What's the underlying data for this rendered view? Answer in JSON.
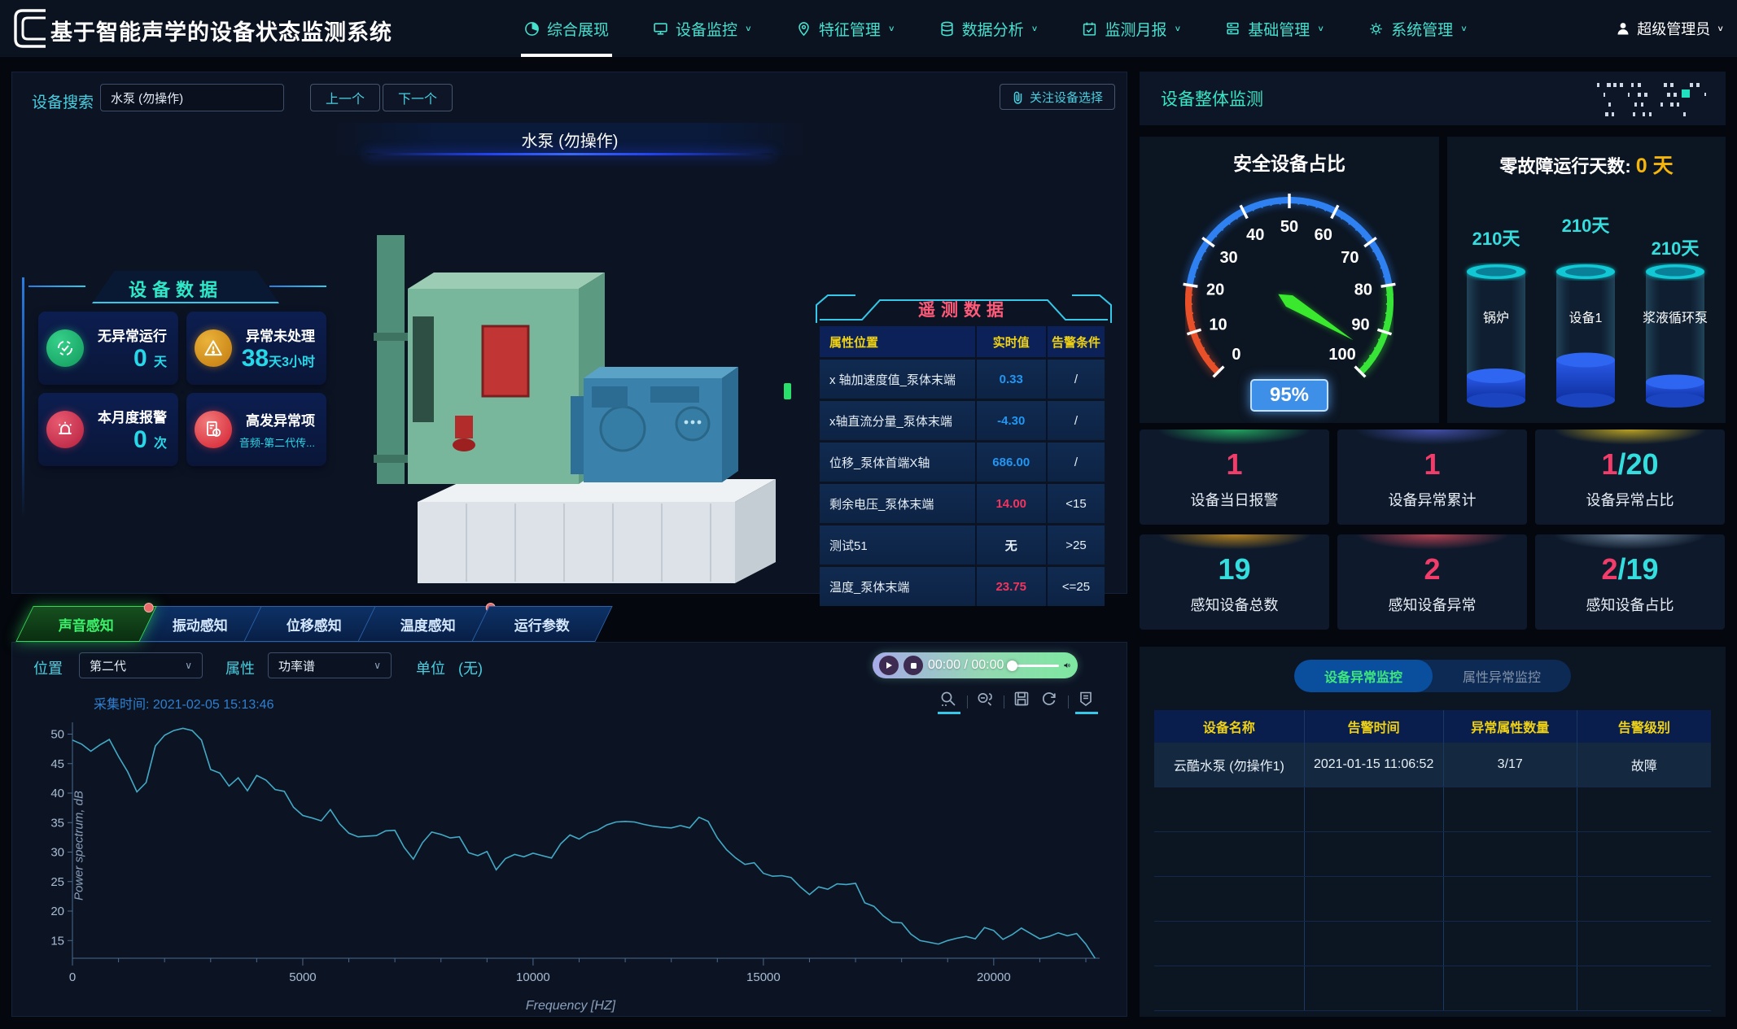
{
  "app": {
    "title": "基于智能声学的设备状态监测系统"
  },
  "nav": {
    "items": [
      {
        "label": "综合展现",
        "icon": "dashboard-icon",
        "active": true
      },
      {
        "label": "设备监控",
        "icon": "monitor-icon"
      },
      {
        "label": "特征管理",
        "icon": "feature-pin-icon"
      },
      {
        "label": "数据分析",
        "icon": "database-icon"
      },
      {
        "label": "监测月报",
        "icon": "report-calendar-icon"
      },
      {
        "label": "基础管理",
        "icon": "server-icon"
      },
      {
        "label": "系统管理",
        "icon": "gears-icon"
      }
    ],
    "user": "超级管理员"
  },
  "device_panel": {
    "search_label": "设备搜索",
    "search_value": "水泵 (勿操作)",
    "prev_button": "上一个",
    "next_button": "下一个",
    "focus_button": "关注设备选择",
    "device_title": "水泵 (勿操作)",
    "stats_title": "设备数据",
    "stats": [
      {
        "label": "无异常运行",
        "value": "0",
        "unit": "天"
      },
      {
        "label": "异常未处理",
        "value": "38",
        "unit": "天3小时"
      },
      {
        "label": "本月度报警",
        "value": "0",
        "unit": "次"
      },
      {
        "label": "高发异常项",
        "note": "音频-第二代传..."
      }
    ]
  },
  "telemetry": {
    "title": "遥测数据",
    "headers": [
      "属性位置",
      "实时值",
      "告警条件"
    ],
    "rows": [
      {
        "name": "x 轴加速度值_泵体末端",
        "value": "0.33",
        "cond": "/",
        "color": "#2196f3"
      },
      {
        "name": "x轴直流分量_泵体末端",
        "value": "-4.30",
        "cond": "/",
        "color": "#2196f3"
      },
      {
        "name": "位移_泵体首端X轴",
        "value": "686.00",
        "cond": "/",
        "color": "#2196f3"
      },
      {
        "name": "剩余电压_泵体末端",
        "value": "14.00",
        "cond": "<15",
        "color": "#f2345e"
      },
      {
        "name": "测试51",
        "value": "无",
        "cond": ">25",
        "color": "#e8f0f8"
      },
      {
        "name": "温度_泵体末端",
        "value": "23.75",
        "cond": "<=25",
        "color": "#f2345e"
      }
    ]
  },
  "sensor_panel": {
    "tabs": [
      {
        "label": "声音感知",
        "active": true,
        "badge": true
      },
      {
        "label": "振动感知"
      },
      {
        "label": "位移感知"
      },
      {
        "label": "温度感知",
        "badge": true
      },
      {
        "label": "运行参数"
      }
    ],
    "position_label": "位置",
    "position_value": "第二代",
    "attr_label": "属性",
    "attr_value": "功率谱",
    "unit_label": "单位",
    "unit_value": "(无)",
    "player_time": "00:00 / 00:00",
    "capture_label": "采集时间:",
    "capture_time": "2021-02-05 15:13:46"
  },
  "chart_data": {
    "type": "line",
    "title": "",
    "xlabel": "Frequency [HZ]",
    "ylabel": "Power spectrum, dB",
    "x_start": 0,
    "x_step": 200,
    "y": [
      49.0,
      48.3,
      47.1,
      48.2,
      49.1,
      46.2,
      43.6,
      40.2,
      41.8,
      48.0,
      49.8,
      50.6,
      51.0,
      50.6,
      49.0,
      44.0,
      43.4,
      41.2,
      42.6,
      40.4,
      43.0,
      42.2,
      40.6,
      40.3,
      37.6,
      36.2,
      35.8,
      35.3,
      37.2,
      34.8,
      33.2,
      32.6,
      32.7,
      32.8,
      33.6,
      33.7,
      30.8,
      28.8,
      31.6,
      33.4,
      33.0,
      32.4,
      32.6,
      29.9,
      29.4,
      30.1,
      27.0,
      28.9,
      29.6,
      29.2,
      29.8,
      29.4,
      29.0,
      31.4,
      32.9,
      32.2,
      33.2,
      33.7,
      34.6,
      35.1,
      35.2,
      35.1,
      34.7,
      34.4,
      34.2,
      34.1,
      34.5,
      34.1,
      35.9,
      35.2,
      32.4,
      30.4,
      29.0,
      27.9,
      28.2,
      26.4,
      25.9,
      26.0,
      25.7,
      24.1,
      22.8,
      24.1,
      23.7,
      24.6,
      24.5,
      24.7,
      21.4,
      20.8,
      19.2,
      18.1,
      18.0,
      16.1,
      15.0,
      14.7,
      14.4,
      15.0,
      15.4,
      15.7,
      15.3,
      17.2,
      16.7,
      15.2,
      16.0,
      17.1,
      16.2,
      15.3,
      15.7,
      16.3,
      15.8,
      16.2,
      14.4,
      12.0
    ],
    "xlim": [
      0,
      22300
    ],
    "ylim": [
      12,
      52
    ],
    "xticks": [
      0,
      5000,
      10000,
      15000,
      20000
    ],
    "yticks": [
      15,
      20,
      25,
      30,
      35,
      40,
      45,
      50
    ],
    "grid": false,
    "legend": null,
    "line_color": "#43aac6"
  },
  "right": {
    "header": "设备整体监测",
    "gauge": {
      "title": "安全设备占比",
      "value": 95,
      "display": "95%",
      "min": 0,
      "max": 100,
      "major_step": 10,
      "minor_step": 2,
      "segments": [
        {
          "from": 0,
          "to": 20,
          "color": "#e8502a"
        },
        {
          "from": 20,
          "to": 80,
          "color": "#2f81f2"
        },
        {
          "from": 80,
          "to": 100,
          "color": "#37e437"
        }
      ],
      "needle_color": "#3ae82e"
    },
    "zero_fault": {
      "label": "零故障运行天数:",
      "value": "0 天"
    },
    "cylinders": [
      {
        "days": "210天",
        "name": "锅炉",
        "fill": 20
      },
      {
        "days": "210天",
        "name": "设备1",
        "fill": 33
      },
      {
        "days": "210天",
        "name": "浆液循环泵",
        "fill": 15
      }
    ],
    "stat_cards": [
      {
        "num": "1",
        "suffix": "",
        "label": "设备当日报警",
        "glow": "#27c46a",
        "num_color": "#f23d6b",
        "suffix_color": "#35dede"
      },
      {
        "num": "1",
        "suffix": "",
        "label": "设备异常累计",
        "glow": "#4f5bc4",
        "num_color": "#f23d6b",
        "suffix_color": "#35dede"
      },
      {
        "num": "1",
        "suffix": "/20",
        "label": "设备异常占比",
        "glow": "#e0c020",
        "num_color": "#f23d6b",
        "suffix_color": "#35dede"
      },
      {
        "num": "19",
        "suffix": "",
        "label": "感知设备总数",
        "glow": "#d8981a",
        "num_color": "#35dede",
        "suffix_color": "#35dede"
      },
      {
        "num": "2",
        "suffix": "",
        "label": "感知设备异常",
        "glow": "#d84858",
        "num_color": "#f23d6b",
        "suffix_color": "#35dede"
      },
      {
        "num": "2",
        "suffix": "/19",
        "label": "感知设备占比",
        "glow": "#7d96ad",
        "num_color": "#f23d6b",
        "suffix_color": "#35dede"
      }
    ],
    "alarm": {
      "tabs": [
        {
          "label": "设备异常监控",
          "active": true
        },
        {
          "label": "属性异常监控"
        }
      ],
      "headers": [
        "设备名称",
        "告警时间",
        "异常属性数量",
        "告警级别"
      ],
      "rows": [
        [
          "云酷水泵 (勿操作1)",
          "2021-01-15 11:06:52",
          "3/17",
          "故障"
        ]
      ]
    }
  }
}
